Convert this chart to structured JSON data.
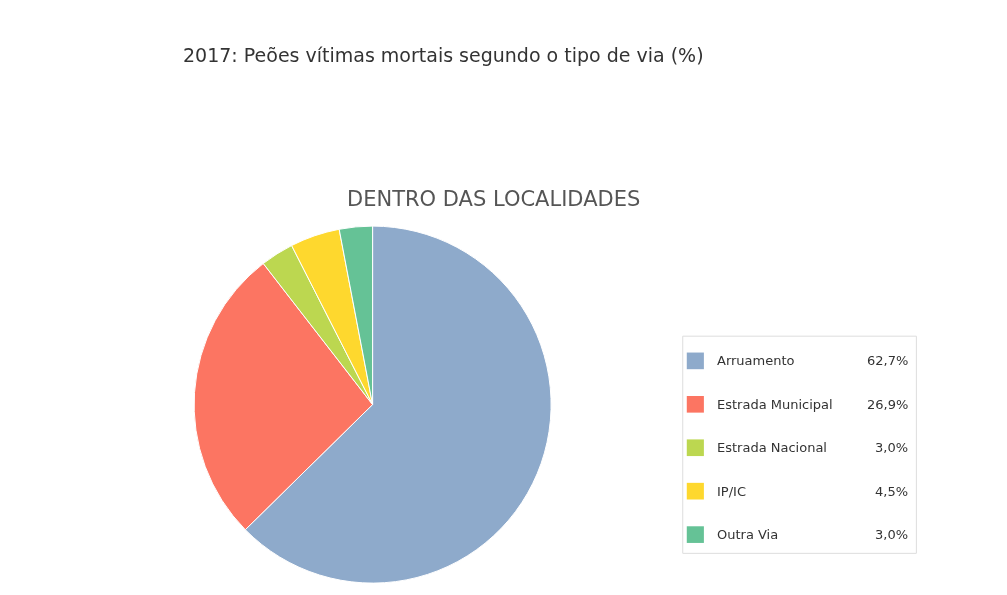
{
  "chart_data": {
    "type": "pie",
    "title": "2017: Peões vítimas mortais segundo o tipo de via (%)",
    "subtitle": "DENTRO DAS LOCALIDADES",
    "categories": [
      "Arruamento",
      "Estrada Municipal",
      "Estrada Nacional",
      "IP/IC",
      "Outra Via"
    ],
    "values": [
      62.7,
      26.9,
      3.0,
      4.5,
      3.0
    ],
    "value_labels": [
      "62,7%",
      "26,9%",
      "3,0%",
      "4,5%",
      "3,0%"
    ],
    "colors": [
      "#8eaacb",
      "#fc7562",
      "#bcd750",
      "#fed82e",
      "#65c296"
    ],
    "legend": "right"
  }
}
